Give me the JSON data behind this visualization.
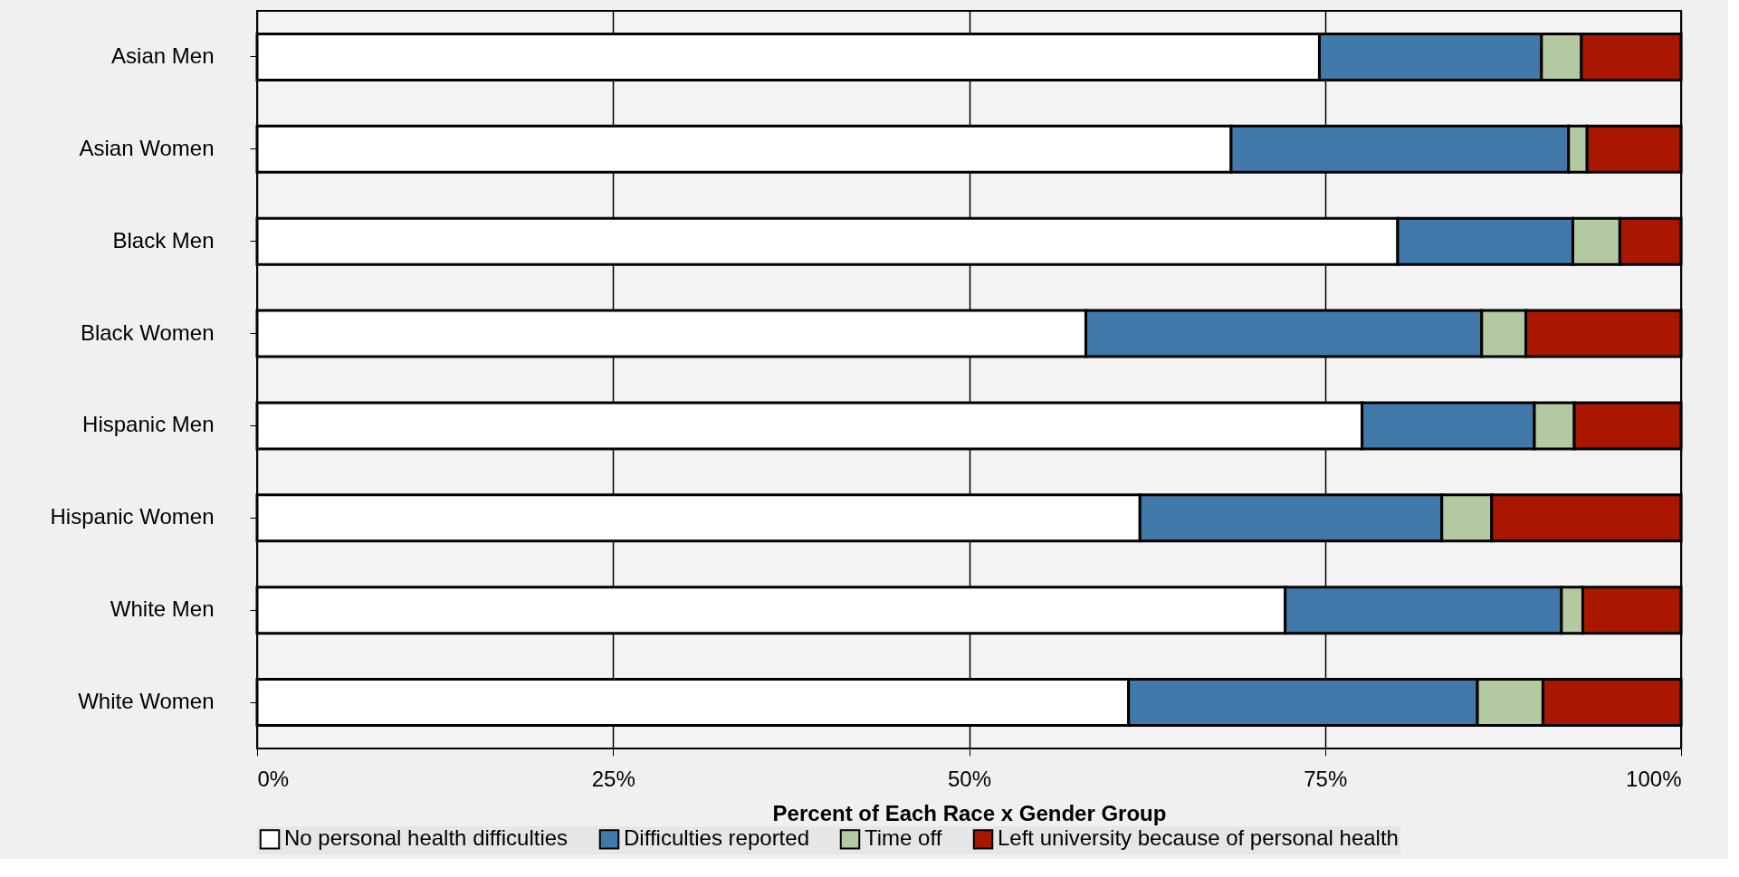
{
  "chart_data": {
    "type": "bar",
    "orientation": "horizontal",
    "stacked": true,
    "categories": [
      "Asian Men",
      "Asian Women",
      "Black Men",
      "Black Women",
      "Hispanic Men",
      "Hispanic Women",
      "White Men",
      "White Women"
    ],
    "series": [
      {
        "name": "No personal health difficulties",
        "color": "#ffffff",
        "values": [
          74.6,
          68.4,
          80.1,
          58.2,
          77.6,
          62.0,
          72.2,
          61.2
        ]
      },
      {
        "name": "Difficulties reported",
        "color": "#4079aa",
        "values": [
          15.6,
          23.7,
          12.3,
          27.8,
          12.1,
          21.2,
          19.4,
          24.5
        ]
      },
      {
        "name": "Time off",
        "color": "#b3c9a1",
        "values": [
          2.8,
          1.3,
          3.3,
          3.1,
          2.8,
          3.5,
          1.5,
          4.6
        ]
      },
      {
        "name": "Left university because of personal health",
        "color": "#a91700",
        "values": [
          7.0,
          6.6,
          4.3,
          10.9,
          7.5,
          13.3,
          6.9,
          9.7
        ]
      }
    ],
    "xlabel": "Percent of Each Race x Gender Group",
    "xlim": [
      0,
      100
    ],
    "xticks": [
      {
        "value": 0,
        "label": "0%"
      },
      {
        "value": 25,
        "label": "25%"
      },
      {
        "value": 50,
        "label": "50%"
      },
      {
        "value": 75,
        "label": "75%"
      },
      {
        "value": 100,
        "label": "100%"
      }
    ],
    "grid": "x",
    "legend": "bottom"
  }
}
